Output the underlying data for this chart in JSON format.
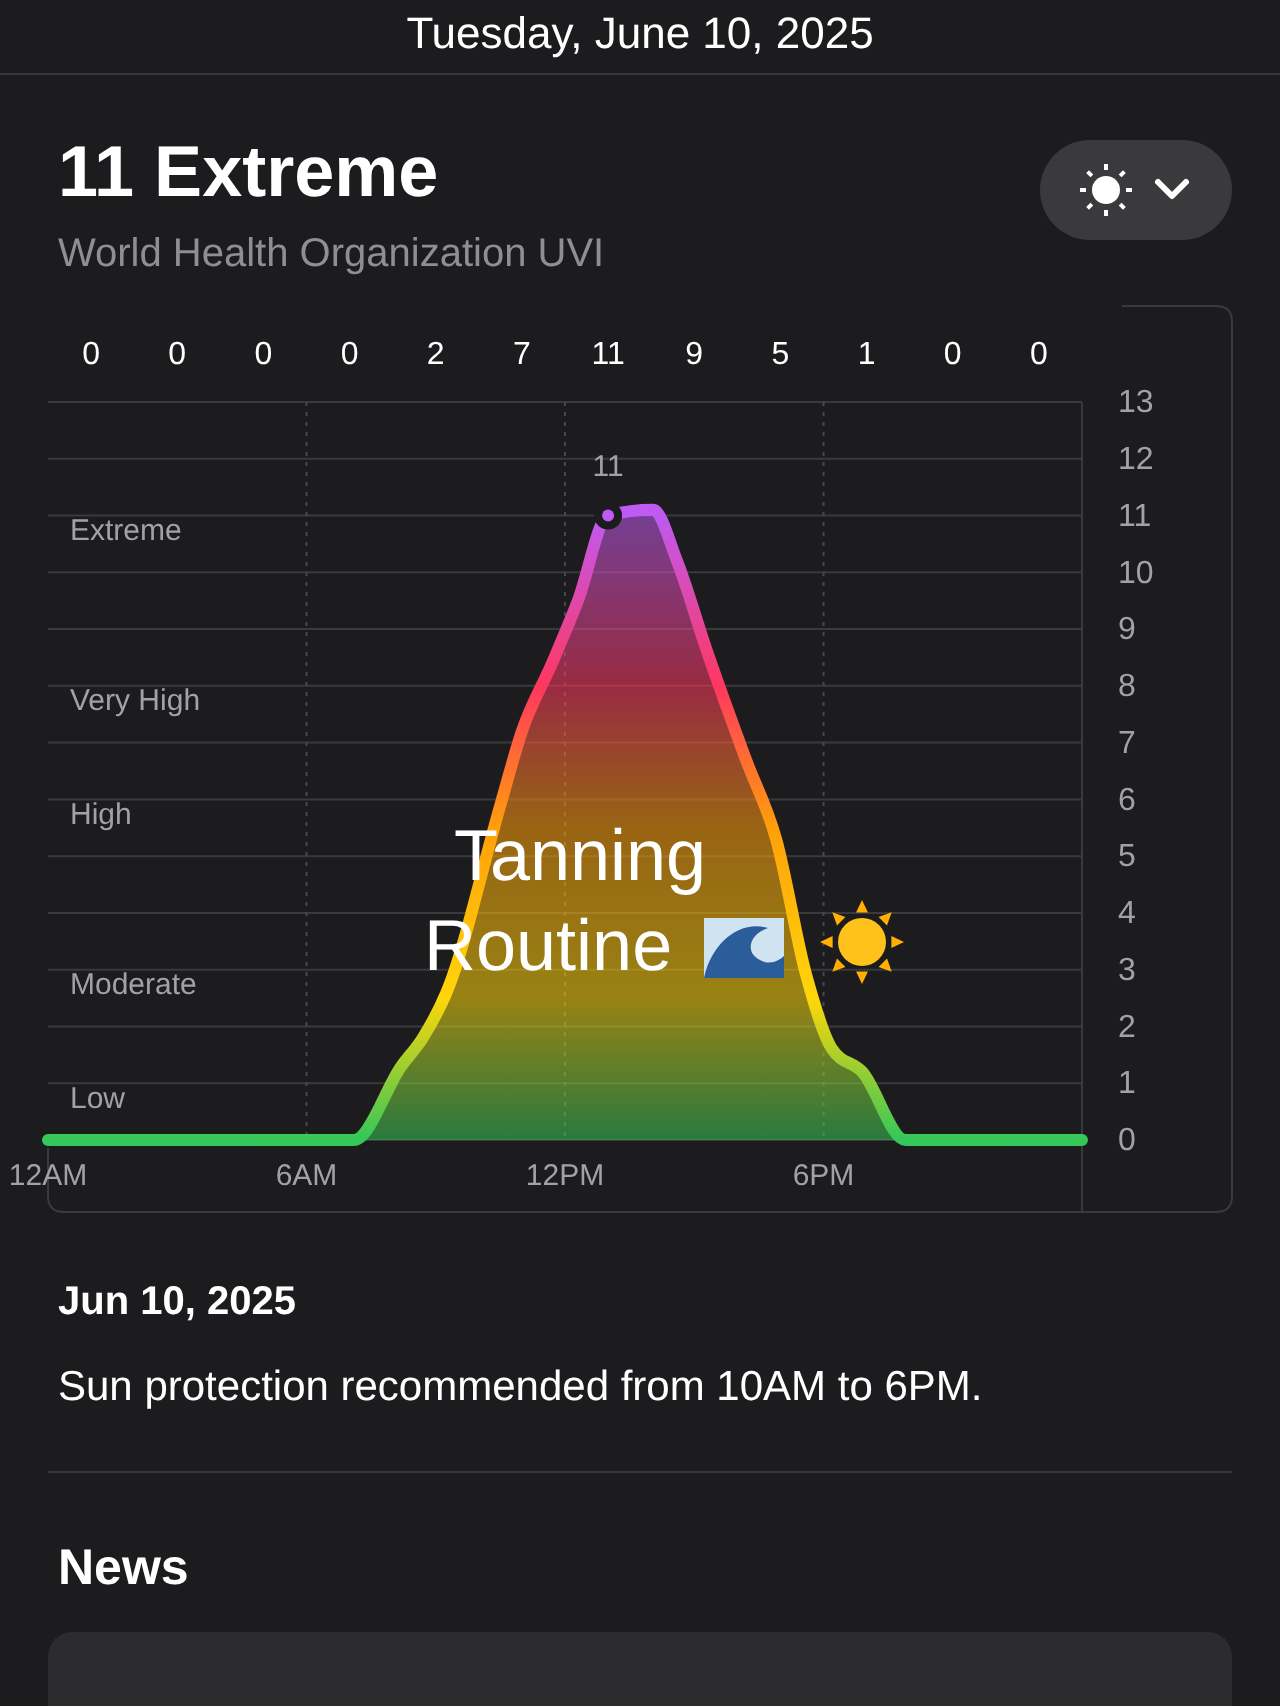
{
  "chart_data": {
    "type": "area",
    "title": "11 Extreme",
    "subtitle": "World Health Organization UVI",
    "annotations": [
      "Tuesday, June 10, 2025",
      {
        "text": "11",
        "x": "2025-06-10T13:00",
        "y": 11
      },
      "0",
      "0",
      "0",
      "0",
      "2",
      "7",
      "11",
      "9",
      "5",
      "1",
      "0",
      "0",
      "Tanning Routine",
      "Jun 10, 2025",
      "Sun protection recommended from 10AM to 6PM.",
      "News",
      "Low",
      "Moderate",
      "High",
      "Very High",
      "Extreme"
    ],
    "series": [
      {
        "color": "#34c759",
        "x": [
          "2025-06-10T00:00",
          "2025-06-10T06:00",
          "2025-06-10T07:06",
          "2025-06-10T08:12",
          "2025-06-10T08:42",
          "2025-06-10T09:15",
          "2025-06-10T10:30",
          "2025-06-10T11:00",
          "2025-06-10T11:42",
          "2025-06-10T12:18",
          "2025-06-10T13:00",
          "2025-06-10T14:03",
          "2025-06-10T14:36",
          "2025-06-10T15:18",
          "2025-06-10T16:12",
          "2025-06-10T16:54",
          "2025-06-10T17:36",
          "2025-06-10T18:12",
          "2025-06-10T18:54",
          "2025-06-10T19:54",
          "2025-06-11T00:00"
        ],
        "values": [
          0,
          0,
          0,
          1.3,
          1.8,
          2.6,
          5.9,
          7.2,
          8.4,
          9.5,
          11,
          11.1,
          10.2,
          8.6,
          6.7,
          5.3,
          2.9,
          1.6,
          1.2,
          0,
          0
        ]
      }
    ],
    "xlim": [
      "2025-06-10T00:00",
      "2025-06-11T00:00"
    ],
    "xticks": [
      {
        "value": "2025-06-10T00:00",
        "label": "12AM"
      },
      {
        "value": "2025-06-10T06:00",
        "label": "6AM"
      },
      {
        "value": "2025-06-10T12:00",
        "label": "12PM"
      },
      {
        "value": "2025-06-10T18:00",
        "label": "6PM"
      }
    ],
    "ylim": [
      0,
      13
    ],
    "yticks": [
      0,
      1,
      2,
      3,
      4,
      5,
      6,
      7,
      8,
      9,
      10,
      11,
      12,
      13
    ],
    "grid": true,
    "marker": "none",
    "line_style": "solid"
  }
}
